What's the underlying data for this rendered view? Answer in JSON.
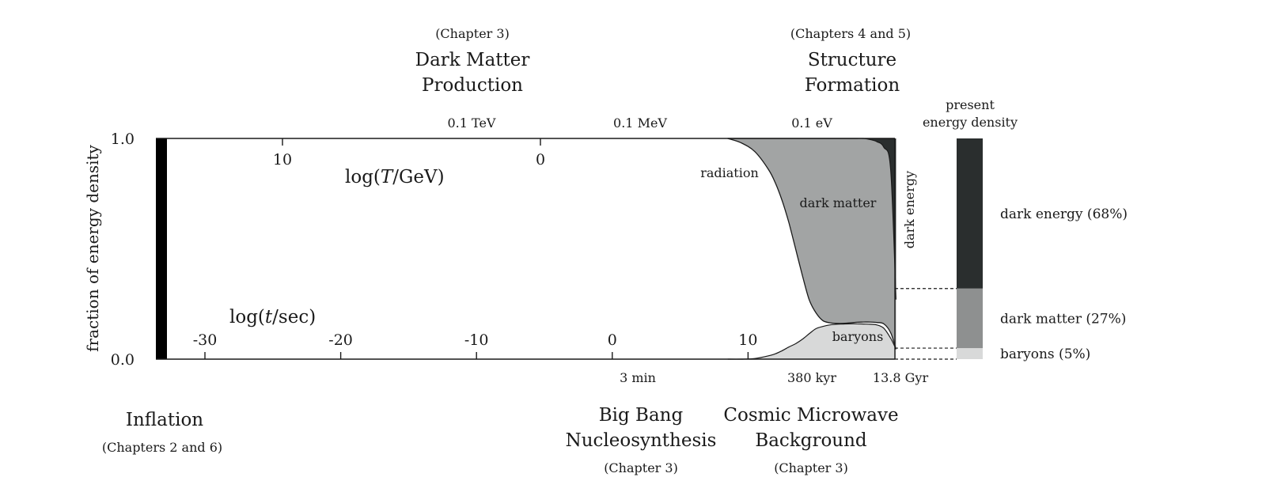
{
  "chart_data": {
    "type": "area",
    "ylabel": "fraction of energy density",
    "y_ticks": [
      "1.0",
      "0.0"
    ],
    "ylim": [
      0,
      1
    ],
    "time_axis": {
      "label_pre": "log(",
      "label_var": "t",
      "label_post": "/sec)",
      "ticks": [
        {
          "value": -30,
          "label": "-30"
        },
        {
          "value": -20,
          "label": "-20"
        },
        {
          "value": -10,
          "label": "-10"
        },
        {
          "value": 0,
          "label": "0"
        },
        {
          "value": 10,
          "label": "10"
        }
      ],
      "range": [
        -33.1,
        20.9
      ]
    },
    "temperature_axis": {
      "label_pre": "log(",
      "label_var": "T",
      "label_post": "/GeV)",
      "ticks": [
        {
          "value": 10,
          "label": "10"
        },
        {
          "value": 0,
          "label": "0"
        }
      ]
    },
    "top_scale": [
      {
        "log_t": -10.5,
        "label": "0.1 TeV"
      },
      {
        "log_t": 2.1,
        "label": "0.1 MeV"
      },
      {
        "log_t": 14.9,
        "label": "0.1 eV"
      }
    ],
    "bottom_scale": [
      {
        "log_t": 1.8,
        "label": "3 min"
      },
      {
        "log_t": 13.1,
        "label": "380 kyr"
      },
      {
        "log_t": 17.5,
        "label": "13.8 Gyr"
      }
    ],
    "series": [
      {
        "name": "radiation",
        "color": "#ffffff"
      },
      {
        "name": "baryons",
        "color": "#d8d9d9"
      },
      {
        "name": "dark matter",
        "color": "#a2a4a4"
      },
      {
        "name": "dark energy",
        "color": "#2a2e2e"
      }
    ],
    "inflation_band": {
      "color": "#000000"
    },
    "cumulative_boundaries": {
      "log_t": [
        8.5,
        9.5,
        10.5,
        11.5,
        12.0,
        12.5,
        13.0,
        13.5,
        14.0,
        14.5,
        15.0,
        15.5,
        16.0,
        16.5,
        17.0,
        17.5,
        18.0,
        18.5,
        19.0,
        19.5,
        20.0,
        20.5,
        20.9
      ],
      "baryons_top": [
        0.0,
        0.0,
        0.003,
        0.015,
        0.024,
        0.038,
        0.055,
        0.07,
        0.09,
        0.115,
        0.138,
        0.148,
        0.155,
        0.158,
        0.159,
        0.16,
        0.16,
        0.159,
        0.158,
        0.155,
        0.14,
        0.095,
        0.045
      ],
      "matter_top": [
        1.0,
        0.98,
        0.94,
        0.86,
        0.8,
        0.72,
        0.62,
        0.5,
        0.38,
        0.27,
        0.21,
        0.175,
        0.165,
        0.162,
        0.162,
        0.164,
        0.167,
        0.168,
        0.168,
        0.166,
        0.16,
        0.12,
        0.045
      ],
      "dark_energy_bottom": [
        1.0,
        1.0,
        1.0,
        1.0,
        1.0,
        1.0,
        1.0,
        1.0,
        1.0,
        1.0,
        1.0,
        1.0,
        1.0,
        1.0,
        1.0,
        1.0,
        1.0,
        1.0,
        0.995,
        0.985,
        0.96,
        0.86,
        0.27
      ]
    },
    "present_energy_density": {
      "title_line1": "present",
      "title_line2": "energy density",
      "segments": [
        {
          "name": "baryons",
          "percent": 5,
          "label": "baryons (5%)",
          "color": "#d8d9d9"
        },
        {
          "name": "dark matter",
          "percent": 27,
          "label": "dark matter (27%)",
          "color": "#8e9090"
        },
        {
          "name": "dark energy",
          "percent": 68,
          "label": "dark energy (68%)",
          "color": "#2a2e2e"
        }
      ]
    },
    "region_labels": {
      "radiation": "radiation",
      "dark_matter": "dark matter",
      "baryons": "baryons",
      "dark_energy": "dark energy"
    },
    "epochs_top": [
      {
        "line1": "Dark Matter",
        "line2": "Production",
        "chapter": "(Chapter 3)"
      },
      {
        "line1": "Structure",
        "line2": "Formation",
        "chapter": "(Chapters 4 and 5)"
      }
    ],
    "epochs_bottom": [
      {
        "line1": "Inflation",
        "line2": "",
        "chapter": "(Chapters 2 and 6)"
      },
      {
        "line1": "Big Bang",
        "line2": "Nucleosynthesis",
        "chapter": "(Chapter 3)"
      },
      {
        "line1": "Cosmic Microwave",
        "line2": "Background",
        "chapter": "(Chapter 3)"
      }
    ]
  }
}
